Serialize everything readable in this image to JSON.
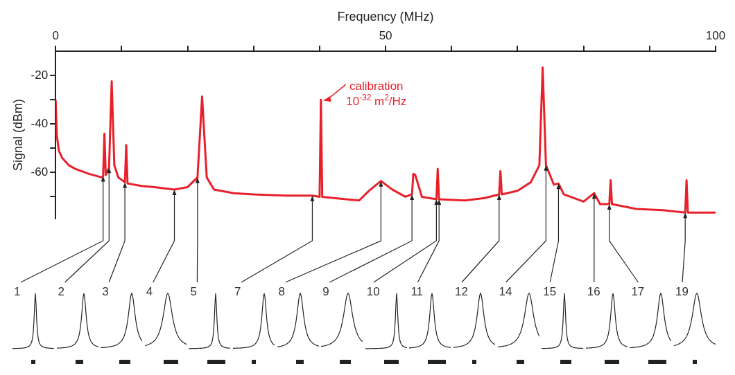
{
  "chart_data": {
    "type": "line",
    "xlabel": "Frequency (MHz)",
    "ylabel": "Signal (dBm)",
    "xlim": [
      0,
      100
    ],
    "xticks": [
      0,
      {
        "value": 10,
        "label": null
      },
      {
        "value": 20,
        "label": null
      },
      {
        "value": 30,
        "label": null
      },
      {
        "value": 40,
        "label": null
      },
      50,
      {
        "value": 60,
        "label": null
      },
      {
        "value": 70,
        "label": null
      },
      {
        "value": 80,
        "label": null
      },
      {
        "value": 90,
        "label": null
      },
      100
    ],
    "ylim": [
      -79,
      -10
    ],
    "yticks": [
      -20,
      {
        "value": -30,
        "label": null
      },
      -40,
      {
        "value": -50,
        "label": null
      },
      -60,
      {
        "value": -70,
        "label": null
      }
    ],
    "marker": "none",
    "series": [
      {
        "color": "#e8202a",
        "x": [
          0,
          0.2,
          0.5,
          1,
          2,
          3,
          5,
          7,
          7.2,
          7.4,
          7.6,
          8.1,
          8.5,
          8.9,
          9.5,
          10.5,
          10.7,
          10.9,
          13,
          15,
          18,
          20,
          21.5,
          22.2,
          22.9,
          24,
          27,
          30,
          35,
          38.9,
          40.0,
          40.2,
          40.4,
          44,
          46,
          47.5,
          49.3,
          51,
          53,
          54,
          54.2,
          54.5,
          55.5,
          57.7,
          57.9,
          58.1,
          62,
          65,
          67.2,
          67.4,
          67.6,
          70,
          72,
          73.3,
          73.8,
          74.3,
          75.5,
          76.2,
          77,
          80,
          81.6,
          82.5,
          83.9,
          84.1,
          84.3,
          88,
          92,
          95.4,
          95.6,
          95.8,
          100
        ],
        "values": [
          -30,
          -45,
          -51,
          -54,
          -57,
          -58.5,
          -60.5,
          -62,
          -61.5,
          -44,
          -61,
          -58,
          -22.4,
          -57,
          -62,
          -64,
          -48.7,
          -64.5,
          -65.5,
          -66,
          -67,
          -66,
          -62,
          -28.7,
          -62,
          -67,
          -68.5,
          -69,
          -69.5,
          -69.5,
          -70,
          -30,
          -70,
          -71,
          -71.5,
          -67.5,
          -63.5,
          -67,
          -70,
          -69,
          -60.6,
          -61,
          -70,
          -71,
          -58.5,
          -71,
          -71.5,
          -70.5,
          -69,
          -59.4,
          -69,
          -67.5,
          -64,
          -57,
          -16.7,
          -57,
          -65,
          -64.5,
          -69,
          -72,
          -68.5,
          -73,
          -73,
          -63.2,
          -73,
          -75,
          -75.5,
          -76.5,
          -63.2,
          -76.5,
          -76.5
        ]
      }
    ],
    "annotations": [
      {
        "text": "calibration\n10$^{-32}$ m$^{2}$/Hz",
        "x": 40.2,
        "y": -30
      },
      {
        "text": "1",
        "x": 7.2,
        "y": -61.5
      },
      {
        "text": "2",
        "x": 8.1,
        "y": -58
      },
      {
        "text": "3",
        "x": 10.5,
        "y": -64
      },
      {
        "text": "4",
        "x": 18,
        "y": -67
      },
      {
        "text": "5",
        "x": 21.5,
        "y": -62
      },
      {
        "text": "7",
        "x": 38.9,
        "y": -69.5
      },
      {
        "text": "8",
        "x": 49.3,
        "y": -63.5
      },
      {
        "text": "9",
        "x": 54,
        "y": -69
      },
      {
        "text": "10",
        "x": 57.7,
        "y": -71
      },
      {
        "text": "11",
        "x": 58.1,
        "y": -71
      },
      {
        "text": "12",
        "x": 67.2,
        "y": -69
      },
      {
        "text": "14",
        "x": 74.3,
        "y": -57
      },
      {
        "text": "15",
        "x": 76.2,
        "y": -64.5
      },
      {
        "text": "16",
        "x": 81.6,
        "y": -68.5
      },
      {
        "text": "17",
        "x": 83.9,
        "y": -73
      },
      {
        "text": "19",
        "x": 95.4,
        "y": -76.5
      }
    ]
  }
}
